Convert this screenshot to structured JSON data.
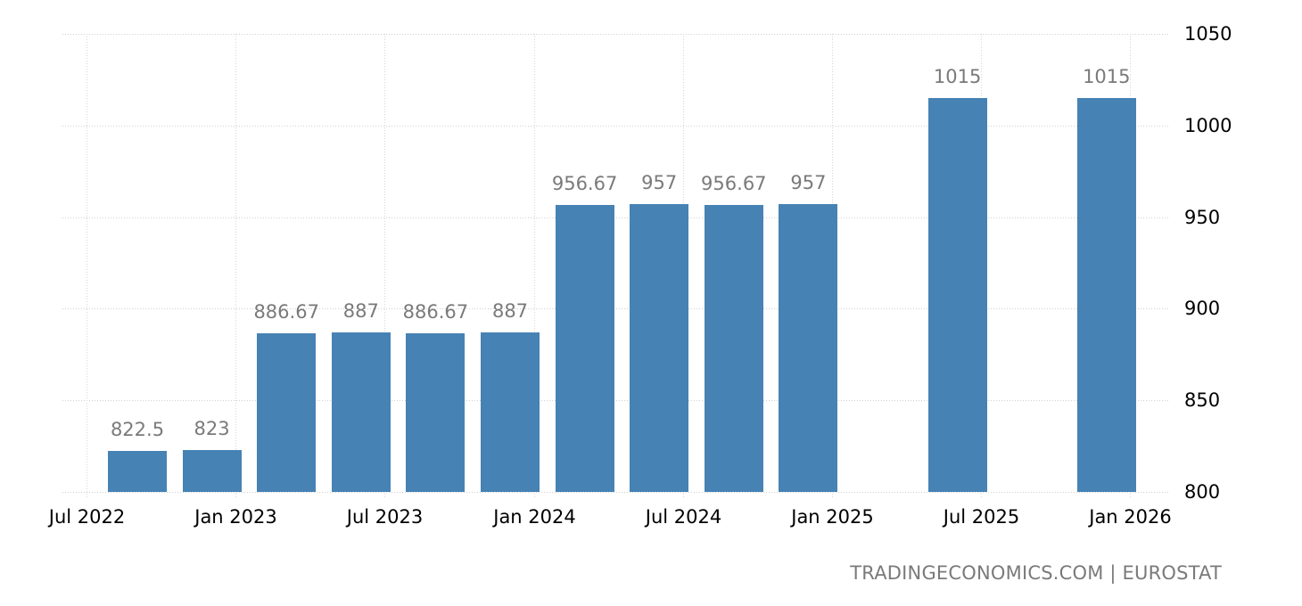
{
  "chart_data": {
    "type": "bar",
    "title": "",
    "xlabel": "",
    "ylabel": "",
    "ylim": [
      800,
      1050
    ],
    "y_ticks": [
      800,
      850,
      900,
      950,
      1000,
      1050
    ],
    "x_tick_labels": [
      "Jul 2022",
      "Jan 2023",
      "Jul 2023",
      "Jan 2024",
      "Jul 2024",
      "Jan 2025",
      "Jul 2025",
      "Jan 2026"
    ],
    "grid": true,
    "legend": null,
    "categories": [
      "Q3 2022",
      "Q4 2022",
      "Q1 2023",
      "Q2 2023",
      "Q3 2023",
      "Q4 2023",
      "Q1 2024",
      "Q2 2024",
      "Q3 2024",
      "Q4 2024",
      "Q1 2025",
      "Q2 2025",
      "Q3 2025",
      "Q4 2025"
    ],
    "values": [
      822.5,
      823,
      886.67,
      887,
      886.67,
      887,
      956.67,
      957,
      956.67,
      957,
      null,
      1015,
      null,
      1015
    ],
    "value_labels": [
      "822.5",
      "823",
      "886.67",
      "887",
      "886.67",
      "887",
      "956.67",
      "957",
      "956.67",
      "957",
      "",
      "1015",
      "",
      "1015"
    ],
    "bar_color": "#4682b4"
  },
  "credit": "TRADINGECONOMICS.COM  |  EUROSTAT"
}
